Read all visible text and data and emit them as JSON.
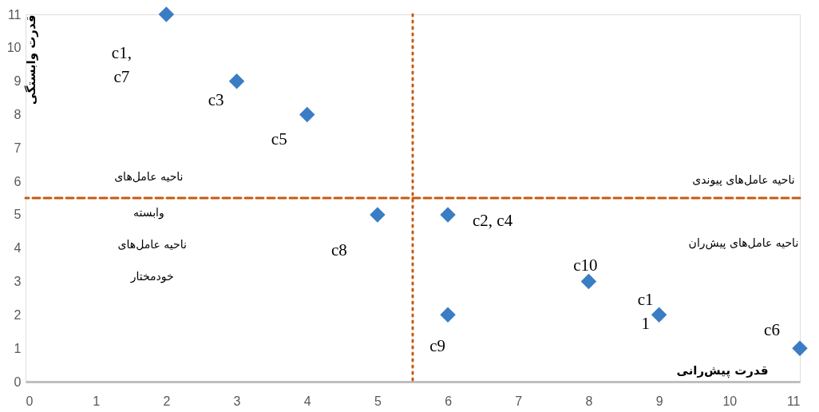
{
  "chart_data": {
    "type": "scatter",
    "xlabel": "قدرت پیش‌رانی",
    "ylabel": "قدرت وابستگی",
    "x": [
      2,
      3,
      4,
      5,
      6,
      6,
      8,
      9,
      11
    ],
    "series": [
      {
        "color": "#3a7dc4",
        "values": [
          11,
          9,
          8,
          5,
          5,
          2,
          3,
          2,
          1
        ]
      }
    ],
    "xlim": [
      0,
      11
    ],
    "ylim": [
      0,
      11
    ],
    "xticks": [
      0,
      1,
      2,
      3,
      4,
      5,
      6,
      7,
      8,
      9,
      10,
      11
    ],
    "yticks": [
      0,
      1,
      2,
      3,
      4,
      5,
      6,
      7,
      8,
      9,
      10,
      11
    ],
    "grid": false,
    "marker": "diamond",
    "ref_lines": [
      {
        "axis": "y",
        "value": 5.5,
        "color": "#c55a11",
        "line_style": "dashed"
      },
      {
        "axis": "x",
        "value": 5.5,
        "color": "#c55a11",
        "line_style": "dotted"
      }
    ],
    "annotations": [
      {
        "text": "c1,\nc7",
        "x": 2,
        "y": 11
      },
      {
        "text": "c3",
        "x": 3,
        "y": 9
      },
      {
        "text": "c5",
        "x": 4,
        "y": 8
      },
      {
        "text": "c8",
        "x": 5,
        "y": 5
      },
      {
        "text": "c2, c4",
        "x": 6,
        "y": 5
      },
      {
        "text": "c10",
        "x": 8,
        "y": 3
      },
      {
        "text": "c9",
        "x": 6,
        "y": 2
      },
      {
        "text": "c1\n1",
        "x": 9,
        "y": 2
      },
      {
        "text": "c6",
        "x": 11,
        "y": 1
      },
      "ناحیه عامل‌های\nوابسته",
      "ناحیه عامل‌های\nخودمختار",
      "ناحیه عامل‌های پیوندی",
      "ناحیه عامل‌های پیش‌ران"
    ]
  }
}
